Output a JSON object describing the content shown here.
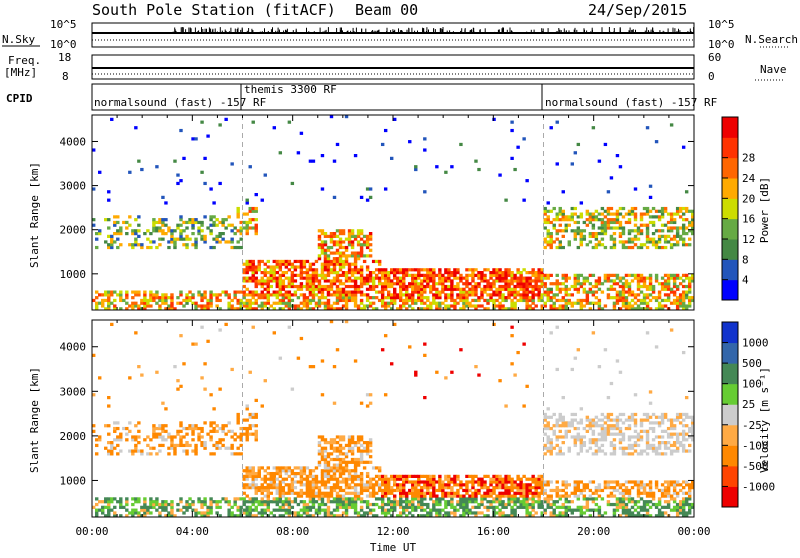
{
  "header": {
    "title": "South Pole Station (fitACF)",
    "beam": "Beam 00",
    "date": "24/Sep/2015"
  },
  "top_panels": {
    "nsky_label": "N.Sky",
    "nsky_ticks": [
      "10^5",
      "10^0"
    ],
    "nsearch_label": "N.Search",
    "nsearch_ticks": [
      "10^5",
      "10^0"
    ],
    "freq_label_1": "Freq.",
    "freq_label_2": "[MHz]",
    "freq_ticks": [
      "18",
      "8"
    ],
    "nave_label": "Nave",
    "nave_ticks": [
      "60",
      "0"
    ],
    "cpid_label": "CPID",
    "cpid_segments": [
      {
        "text": "normalsound (fast) -157 RF",
        "start_hour": 0
      },
      {
        "text": "themis 3300 RF",
        "start_hour": 6
      },
      {
        "text": "normalsound (fast) -157 RF",
        "start_hour": 18
      }
    ]
  },
  "chart_data": [
    {
      "type": "heatmap",
      "title": "Power",
      "ylabel": "Slant Range [km]",
      "xlabel": "Time UT",
      "x_ticks": [
        "00:00",
        "04:00",
        "08:00",
        "12:00",
        "16:00",
        "20:00",
        "00:00"
      ],
      "x_range_hours": [
        0,
        24
      ],
      "y_ticks": [
        1000,
        2000,
        3000,
        4000
      ],
      "ylim": [
        180,
        4600
      ],
      "colorbar": {
        "label": "Power [dB]",
        "ticks": [
          "4",
          "8",
          "12",
          "16",
          "20",
          "24",
          "28"
        ],
        "colors": [
          "#0000ff",
          "#2255bb",
          "#448844",
          "#66aa44",
          "#ccdd00",
          "#ffaa00",
          "#ff6600",
          "#ff3300",
          "#ee0000"
        ]
      }
    },
    {
      "type": "heatmap",
      "title": "Velocity",
      "ylabel": "Slant Range [km]",
      "xlabel": "Time UT",
      "x_ticks": [
        "00:00",
        "04:00",
        "08:00",
        "12:00",
        "16:00",
        "20:00",
        "00:00"
      ],
      "x_range_hours": [
        0,
        24
      ],
      "y_ticks": [
        1000,
        2000,
        3000,
        4000
      ],
      "ylim": [
        180,
        4600
      ],
      "colorbar": {
        "label": "Velocity [m s⁻¹]",
        "ticks": [
          "1000",
          "500",
          "100",
          "25",
          "-25",
          "-100",
          "-500",
          "-1000"
        ],
        "colors": [
          "#1133cc",
          "#3366aa",
          "#448855",
          "#66cc33",
          "#cccccc",
          "#ffaa44",
          "#ff8800",
          "#ff4400",
          "#ee0000"
        ]
      }
    }
  ],
  "colors": {
    "grid_dash": "#aaaaaa",
    "axis": "#000000"
  }
}
